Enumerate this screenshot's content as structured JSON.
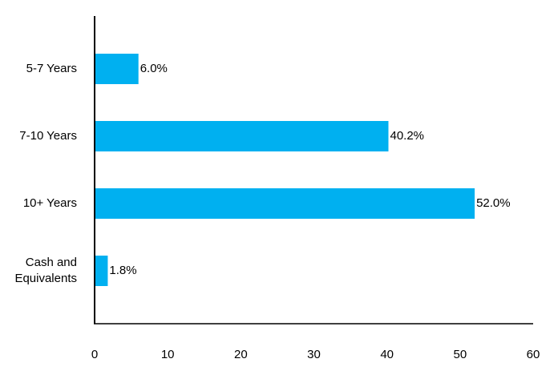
{
  "chart_data": {
    "type": "bar",
    "orientation": "horizontal",
    "categories": [
      "5-7 Years",
      "7-10 Years",
      "10+ Years",
      "Cash and Equivalents"
    ],
    "category_lines": [
      [
        "5-7 Years"
      ],
      [
        "7-10 Years"
      ],
      [
        "10+ Years"
      ],
      [
        "Cash and",
        "Equivalents"
      ]
    ],
    "values": [
      6.0,
      40.2,
      52.0,
      1.8
    ],
    "data_labels": [
      "6.0%",
      "40.2%",
      "52.0%",
      "1.8%"
    ],
    "x_ticks": [
      0,
      10,
      20,
      30,
      40,
      50,
      60
    ],
    "xlim": [
      0,
      60
    ],
    "title": "",
    "xlabel": "",
    "ylabel": "",
    "grid": false,
    "legend": "none",
    "bar_color": "#00B0F0",
    "axis_color": "#000000"
  }
}
